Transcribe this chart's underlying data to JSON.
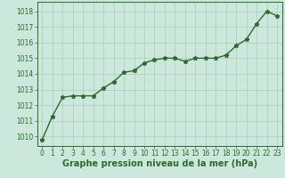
{
  "x": [
    0,
    1,
    2,
    3,
    4,
    5,
    6,
    7,
    8,
    9,
    10,
    11,
    12,
    13,
    14,
    15,
    16,
    17,
    18,
    19,
    20,
    21,
    22,
    23
  ],
  "y": [
    1009.8,
    1011.3,
    1012.5,
    1012.6,
    1012.6,
    1012.6,
    1013.1,
    1013.5,
    1014.1,
    1014.2,
    1014.7,
    1014.9,
    1015.0,
    1015.0,
    1014.8,
    1015.0,
    1015.0,
    1015.0,
    1015.2,
    1015.8,
    1016.2,
    1017.2,
    1018.0,
    1017.7
  ],
  "line_color": "#2d6a2d",
  "marker": "*",
  "marker_color": "#2d6a2d",
  "bg_color": "#cce8dc",
  "grid_color": "#aaccbb",
  "xlabel": "Graphe pression niveau de la mer (hPa)",
  "xlabel_fontsize": 7.0,
  "ylabel_ticks": [
    1010,
    1011,
    1012,
    1013,
    1014,
    1015,
    1016,
    1017,
    1018
  ],
  "ylim": [
    1009.4,
    1018.6
  ],
  "xlim": [
    -0.5,
    23.5
  ],
  "tick_fontsize": 5.5,
  "linewidth": 1.0,
  "markersize": 3.5
}
